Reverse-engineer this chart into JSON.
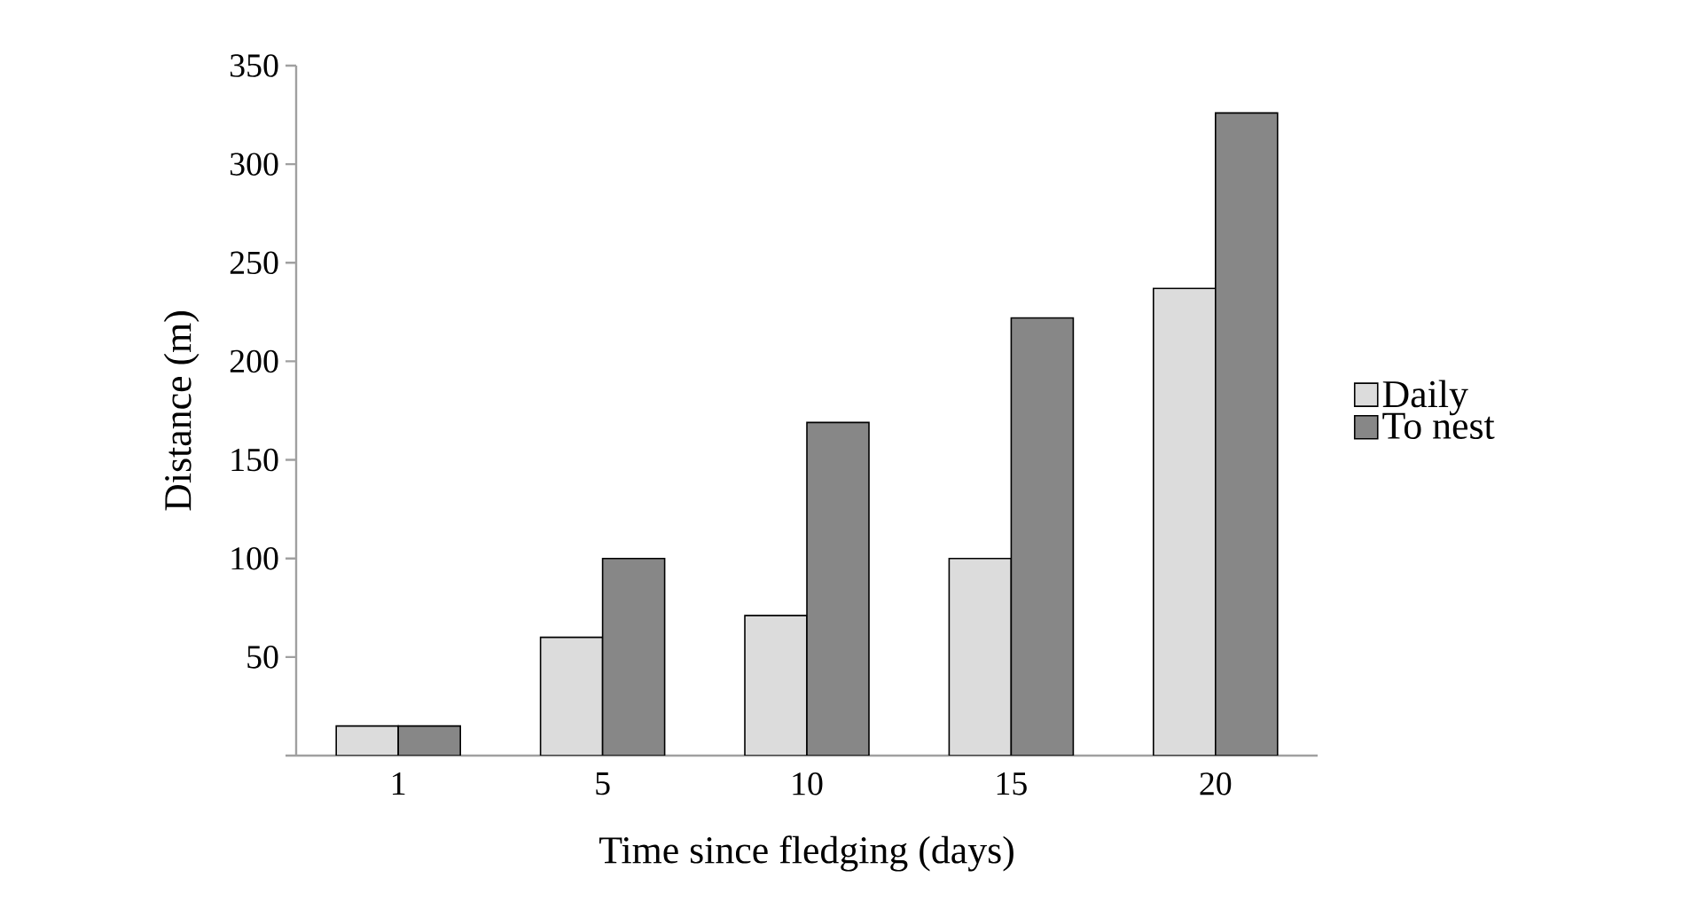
{
  "chart_data": {
    "type": "bar",
    "xlabel": "Time since fledging (days)",
    "ylabel": "Distance (m)",
    "categories": [
      "1",
      "5",
      "10",
      "15",
      "20"
    ],
    "series": [
      {
        "name": "Daily",
        "color": "#dcdcdc",
        "values": [
          15,
          60,
          71,
          100,
          237
        ]
      },
      {
        "name": "To nest",
        "color": "#878787",
        "values": [
          15,
          100,
          169,
          222,
          326
        ]
      }
    ],
    "ylim": [
      0,
      350
    ],
    "yticks": [
      {
        "value": 0,
        "label": null
      },
      50,
      100,
      150,
      200,
      250,
      300,
      350
    ],
    "grid": false,
    "legend": "right"
  }
}
